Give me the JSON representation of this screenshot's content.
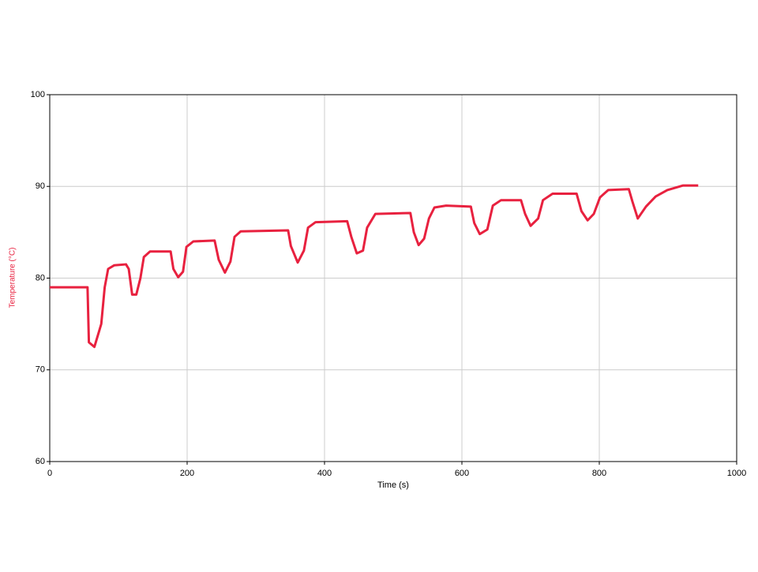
{
  "chart_data": {
    "type": "line",
    "x_label": "Time (s)",
    "y_label": "Temperature (°C)",
    "x": [
      0,
      55,
      57,
      65,
      75,
      80,
      85,
      94,
      111,
      115,
      120,
      126,
      132,
      137,
      146,
      176,
      180,
      187,
      194,
      199,
      209,
      240,
      246,
      255,
      263,
      269,
      278,
      347,
      351,
      361,
      370,
      376,
      387,
      433,
      439,
      447,
      456,
      462,
      474,
      525,
      530,
      537,
      545,
      552,
      560,
      577,
      613,
      618,
      626,
      637,
      645,
      657,
      686,
      692,
      700,
      711,
      718,
      732,
      767,
      774,
      783,
      792,
      801,
      813,
      843,
      848,
      856,
      868,
      882,
      899,
      922,
      944
    ],
    "series": [
      {
        "name": "Temperature (°C)",
        "color": "#e8213f",
        "values": [
          79,
          79,
          73,
          72.5,
          75,
          79,
          81,
          81.4,
          81.5,
          81,
          78.2,
          78.2,
          80,
          82.3,
          82.9,
          82.9,
          81,
          80.1,
          80.7,
          83.4,
          84,
          84.1,
          82,
          80.6,
          81.8,
          84.5,
          85.1,
          85.2,
          83.5,
          81.7,
          83,
          85.5,
          86.1,
          86.2,
          84.5,
          82.7,
          83,
          85.5,
          87,
          87.1,
          85,
          83.6,
          84.3,
          86.5,
          87.7,
          87.9,
          87.8,
          86,
          84.8,
          85.3,
          87.9,
          88.5,
          88.5,
          87,
          85.7,
          86.5,
          88.5,
          89.2,
          89.2,
          87.3,
          86.3,
          87,
          88.8,
          89.6,
          89.7,
          88.4,
          86.5,
          87.8,
          88.9,
          89.6,
          90.1,
          90.1
        ]
      }
    ],
    "xlim": [
      0,
      1000
    ],
    "xticks": [
      0,
      200,
      400,
      600,
      800,
      1000
    ],
    "ylim": [
      60,
      100
    ],
    "yticks": [
      60,
      70,
      80,
      90,
      100
    ],
    "grid": true
  }
}
